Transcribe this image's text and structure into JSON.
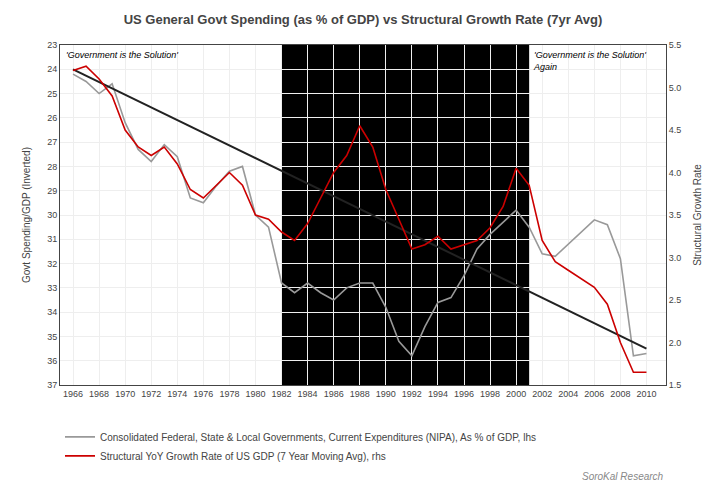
{
  "chart_data": {
    "type": "line",
    "title": "US General Govt Spending (as % of GDP) vs Structural Growth Rate (7yr Avg)",
    "ylabel": "Govt Spending/GDP (Inverted)",
    "y2label": "Structural Growth Rate",
    "annotations": [
      "'Government is the Solution'",
      "'Government is the Solution'\nAgain"
    ],
    "watermark": "SoroKal Research",
    "shaded_region": {
      "x": [
        1982,
        2001
      ],
      "color": "#000000"
    },
    "x": [
      1966,
      1967,
      1968,
      1969,
      1970,
      1971,
      1972,
      1973,
      1974,
      1975,
      1976,
      1977,
      1978,
      1979,
      1980,
      1981,
      1982,
      1983,
      1984,
      1985,
      1986,
      1987,
      1988,
      1989,
      1990,
      1991,
      1992,
      1993,
      1994,
      1995,
      1996,
      1997,
      1998,
      1999,
      2000,
      2001,
      2002,
      2003,
      2004,
      2005,
      2006,
      2007,
      2008,
      2009,
      2010
    ],
    "series": [
      {
        "name": "Consolidated Federal, State & Local Governments, Current Expenditures (NIPA), As % of GDP, lhs",
        "color": "#999999",
        "values": [
          24.2,
          24.5,
          25.0,
          24.6,
          26.2,
          27.3,
          27.8,
          27.1,
          27.6,
          29.3,
          29.5,
          28.8,
          28.2,
          28.0,
          30.0,
          30.5,
          32.8,
          33.2,
          32.8,
          33.2,
          33.5,
          33.0,
          32.8,
          32.8,
          33.8,
          35.2,
          35.8,
          34.6,
          33.6,
          33.4,
          32.5,
          31.4,
          30.8,
          30.3,
          29.8,
          30.5,
          31.6,
          31.7,
          31.2,
          30.7,
          30.2,
          30.4,
          31.8,
          35.8,
          35.7
        ]
      },
      {
        "color": "#222222",
        "x": [
          1966,
          2010
        ],
        "values": [
          24.0,
          35.5
        ]
      },
      {
        "name": "Structural YoY Growth Rate of US GDP (7 Year Moving Avg), rhs",
        "color": "#cc0000",
        "axis": "y2",
        "values": [
          5.2,
          5.25,
          5.1,
          4.9,
          4.5,
          4.3,
          4.2,
          4.3,
          4.1,
          3.8,
          3.7,
          3.85,
          4.0,
          3.85,
          3.5,
          3.45,
          3.3,
          3.2,
          3.4,
          3.7,
          4.0,
          4.2,
          4.55,
          4.3,
          3.8,
          3.45,
          3.1,
          3.15,
          3.25,
          3.1,
          3.15,
          3.2,
          3.35,
          3.6,
          4.05,
          3.85,
          3.2,
          2.95,
          2.85,
          2.75,
          2.65,
          2.45,
          2.0,
          1.65,
          1.65
        ]
      }
    ],
    "xlim": [
      1965.0,
      2011.5
    ],
    "xticks": [
      1966,
      1968,
      1970,
      1972,
      1974,
      1976,
      1978,
      1980,
      1982,
      1984,
      1986,
      1988,
      1990,
      1992,
      1994,
      1996,
      1998,
      2000,
      2002,
      2004,
      2006,
      2008,
      2010
    ],
    "ylim": [
      37,
      23
    ],
    "yticks": [
      23,
      24,
      25,
      26,
      27,
      28,
      29,
      30,
      31,
      32,
      33,
      34,
      35,
      36,
      37
    ],
    "y2lim": [
      1.5,
      5.5
    ],
    "y2ticks": [
      1.5,
      {
        "value": 2.0,
        "label": "2.0"
      },
      2.5,
      {
        "value": 3.0,
        "label": "3.0"
      },
      3.5,
      {
        "value": 4.0,
        "label": "4.0"
      },
      4.5,
      {
        "value": 5.0,
        "label": "5.0"
      },
      5.5
    ],
    "grid": true,
    "legend": "lower left"
  }
}
